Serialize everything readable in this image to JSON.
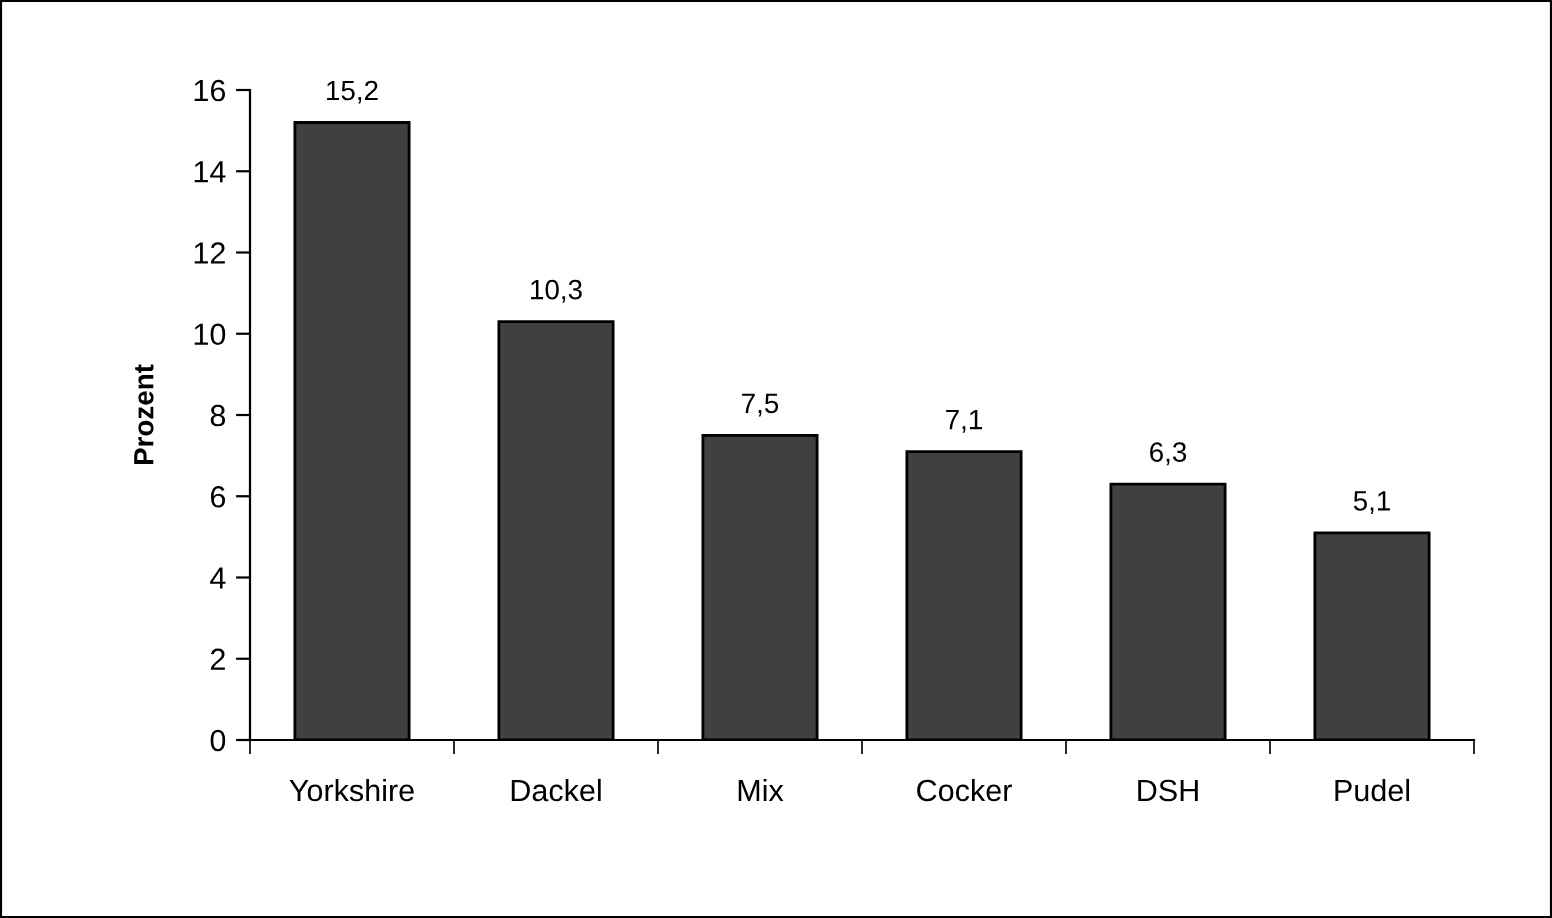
{
  "chart_data": {
    "type": "bar",
    "ylabel": "Prozent",
    "categories": [
      "Yorkshire",
      "Dackel",
      "Mix",
      "Cocker",
      "DSH",
      "Pudel"
    ],
    "values": [
      15.2,
      10.3,
      7.5,
      7.1,
      6.3,
      5.1
    ],
    "value_labels": [
      "15,2",
      "10,3",
      "7,5",
      "7,1",
      "6,3",
      "5,1"
    ],
    "color": "#404040",
    "ylim": [
      0,
      16
    ],
    "yticks": [
      0,
      2,
      4,
      6,
      8,
      10,
      12,
      14,
      16
    ],
    "grid": false,
    "legend": false
  }
}
